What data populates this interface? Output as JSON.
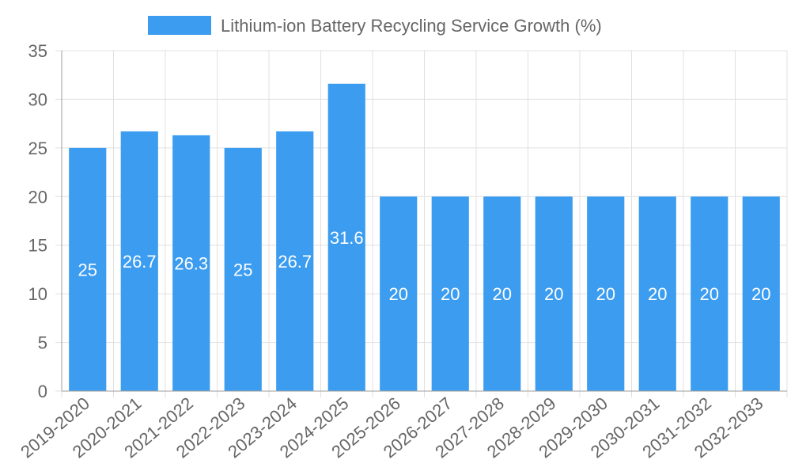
{
  "chart_data": {
    "type": "bar",
    "title": "",
    "xlabel": "",
    "ylabel": "",
    "ylim": [
      0,
      35
    ],
    "yticks": [
      0,
      5,
      10,
      15,
      20,
      25,
      30,
      35
    ],
    "grid": true,
    "legend_position": "top-center",
    "categories": [
      "2019-2020",
      "2020-2021",
      "2021-2022",
      "2022-2023",
      "2023-2024",
      "2024-2025",
      "2025-2026",
      "2026-2027",
      "2027-2028",
      "2028-2029",
      "2029-2030",
      "2030-2031",
      "2031-2032",
      "2032-2033"
    ],
    "series": [
      {
        "name": "Lithium-ion Battery Recycling Service Growth (%)",
        "color": "#3b9cf0",
        "values": [
          25,
          26.7,
          26.3,
          25,
          26.7,
          31.6,
          20,
          20,
          20,
          20,
          20,
          20,
          20,
          20
        ]
      }
    ]
  }
}
